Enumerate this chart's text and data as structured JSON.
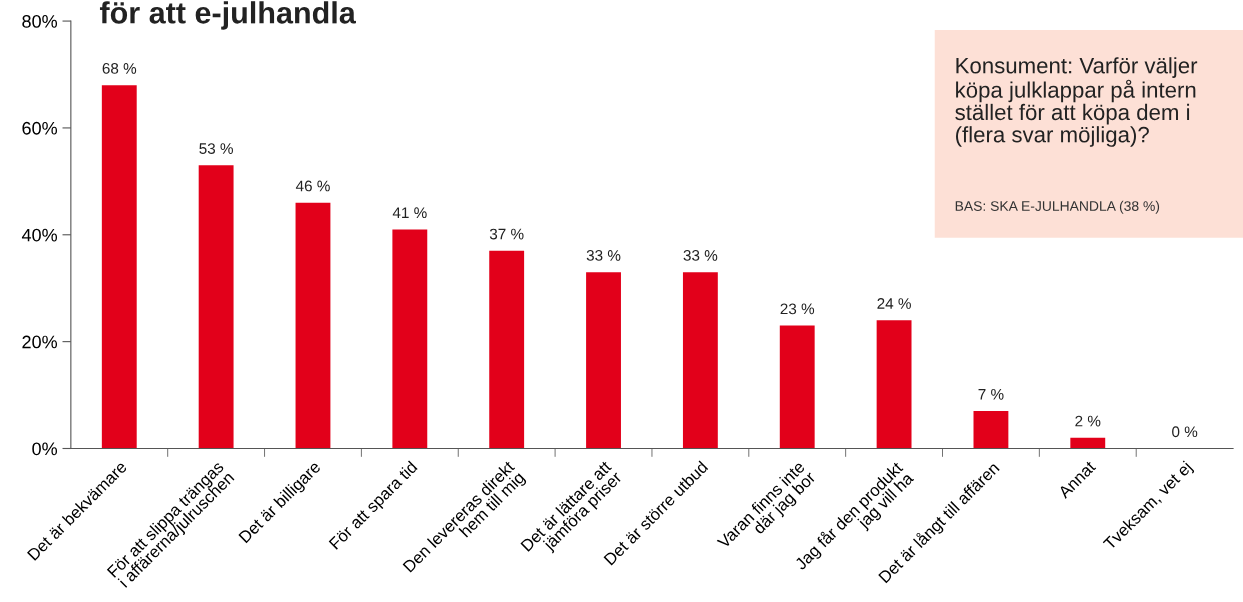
{
  "chart_data": {
    "type": "bar",
    "title": "för att e-julhandla",
    "categories": [
      "Det är bekvämare",
      "För att slippa trängas\ni affärerna/julruschen",
      "Det är billigare",
      "För att spara tid",
      "Den levereras direkt\nhem till mig",
      "Det är lättare att\njämföra priser",
      "Det är större utbud",
      "Varan finns inte\ndär jag bor",
      "Jag får den produkt\njag vill ha",
      "Det är långt till affären",
      "Annat",
      "Tveksam, vet ej"
    ],
    "values": [
      68,
      53,
      46,
      41,
      37,
      33,
      33,
      23,
      24,
      7,
      2,
      0
    ],
    "value_labels": [
      "68 %",
      "53 %",
      "46 %",
      "41 %",
      "37 %",
      "33 %",
      "33 %",
      "23 %",
      "24 %",
      "7 %",
      "2 %",
      "0 %"
    ],
    "color": "#e2001a",
    "ylim": [
      0,
      80
    ],
    "yticks": [
      {
        "value": 0,
        "label": "0%"
      },
      {
        "value": 20,
        "label": "20%"
      },
      {
        "value": 40,
        "label": "40%"
      },
      {
        "value": 60,
        "label": "60%"
      },
      {
        "value": 80,
        "label": "80%"
      }
    ],
    "grid": false,
    "annotations": [
      "Konsument: Varför väljer\nköpa julklappar på intern\nstället för att köpa dem i\n(flera svar möjliga)?",
      "BAS: SKA E-JULHANDLA (38 %)"
    ]
  }
}
